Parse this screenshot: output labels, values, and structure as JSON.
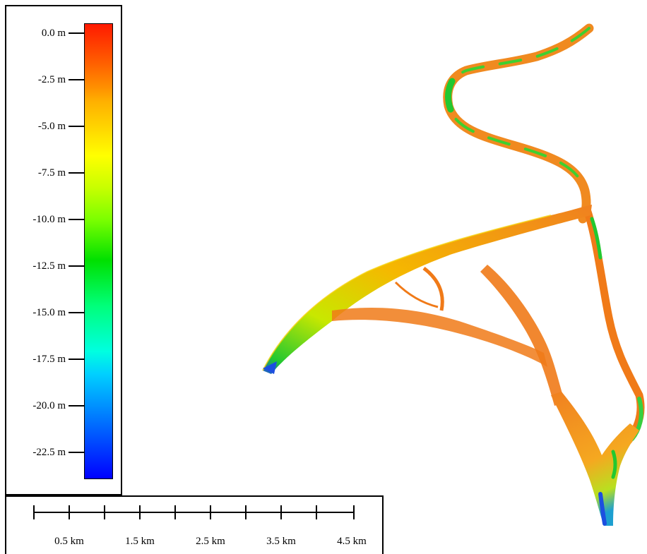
{
  "map": {
    "colormap_stops": [
      "#ff1a00",
      "#ff5a00",
      "#ff9000",
      "#ffb000",
      "#ffd000",
      "#ffff00",
      "#c8ff00",
      "#7cff00",
      "#00e000",
      "#00ff7a",
      "#00ffe0",
      "#00d0ff",
      "#0088ff",
      "#0040ff",
      "#0000ff"
    ],
    "background_color": "#ffffff",
    "channel_colors": {
      "shallow": "#f07a18",
      "mid": "#f5d000",
      "deep": "#22c830",
      "deepest": "#1d4fe0"
    }
  },
  "legend": {
    "labels": [
      "0.0 m",
      "-2.5 m",
      "-5.0 m",
      "-7.5 m",
      "-10.0 m",
      "-12.5 m",
      "-15.0 m",
      "-17.5 m",
      "-20.0 m",
      "-22.5 m"
    ]
  },
  "scale_bar": {
    "labels": [
      "0.5 km",
      "1.5 km",
      "2.5 km",
      "3.5 km",
      "4.5 km"
    ]
  }
}
